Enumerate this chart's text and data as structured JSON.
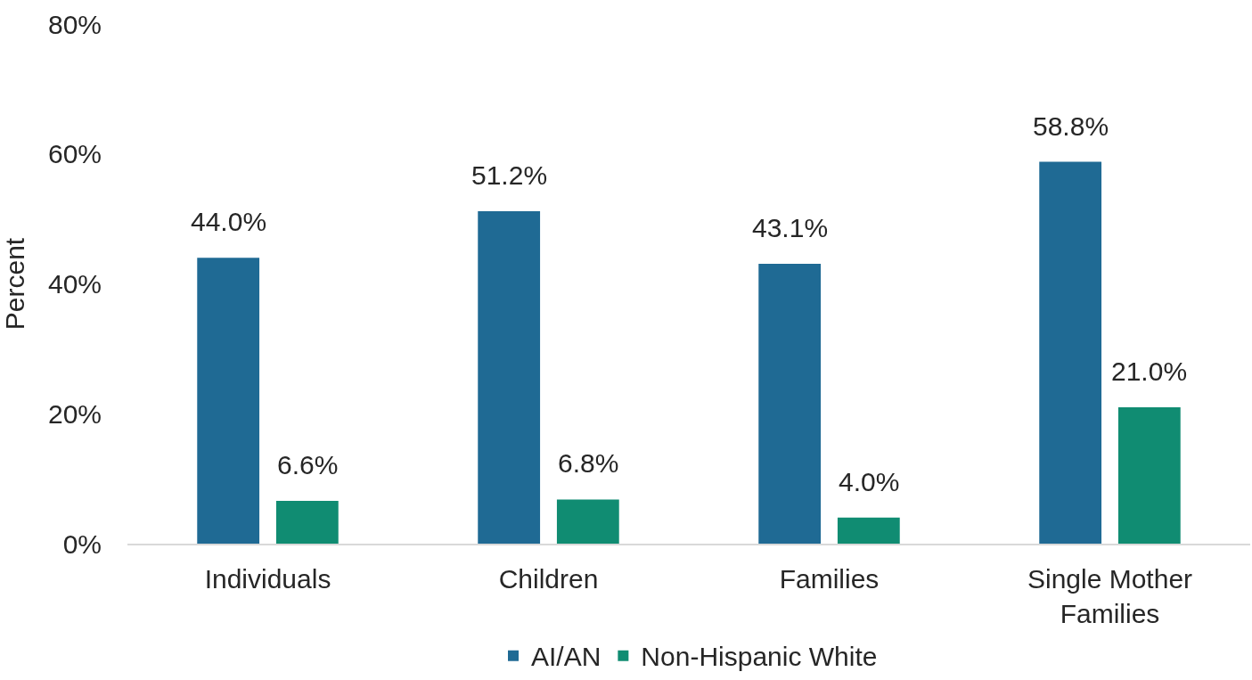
{
  "chart_data": {
    "type": "bar",
    "categories": [
      "Individuals",
      "Children",
      "Families",
      "Single Mother Families"
    ],
    "series": [
      {
        "name": "AI/AN",
        "color": "#1f6a94",
        "values": [
          44.0,
          51.2,
          43.1,
          58.8
        ],
        "value_labels": [
          "44.0%",
          "51.2%",
          "43.1%",
          "58.8%"
        ]
      },
      {
        "name": "Non-Hispanic White",
        "color": "#108c72",
        "values": [
          6.6,
          6.8,
          4.0,
          21.0
        ],
        "value_labels": [
          "6.6%",
          "6.8%",
          "4.0%",
          "21.0%"
        ]
      }
    ],
    "ylabel": "Percent",
    "ylim": [
      0,
      80
    ],
    "yticks": [
      {
        "value": 0,
        "label": "0%"
      },
      {
        "value": 20,
        "label": "20%"
      },
      {
        "value": 40,
        "label": "40%"
      },
      {
        "value": 60,
        "label": "60%"
      },
      {
        "value": 80,
        "label": "80%"
      }
    ],
    "grid": false,
    "legend": "bottom"
  }
}
